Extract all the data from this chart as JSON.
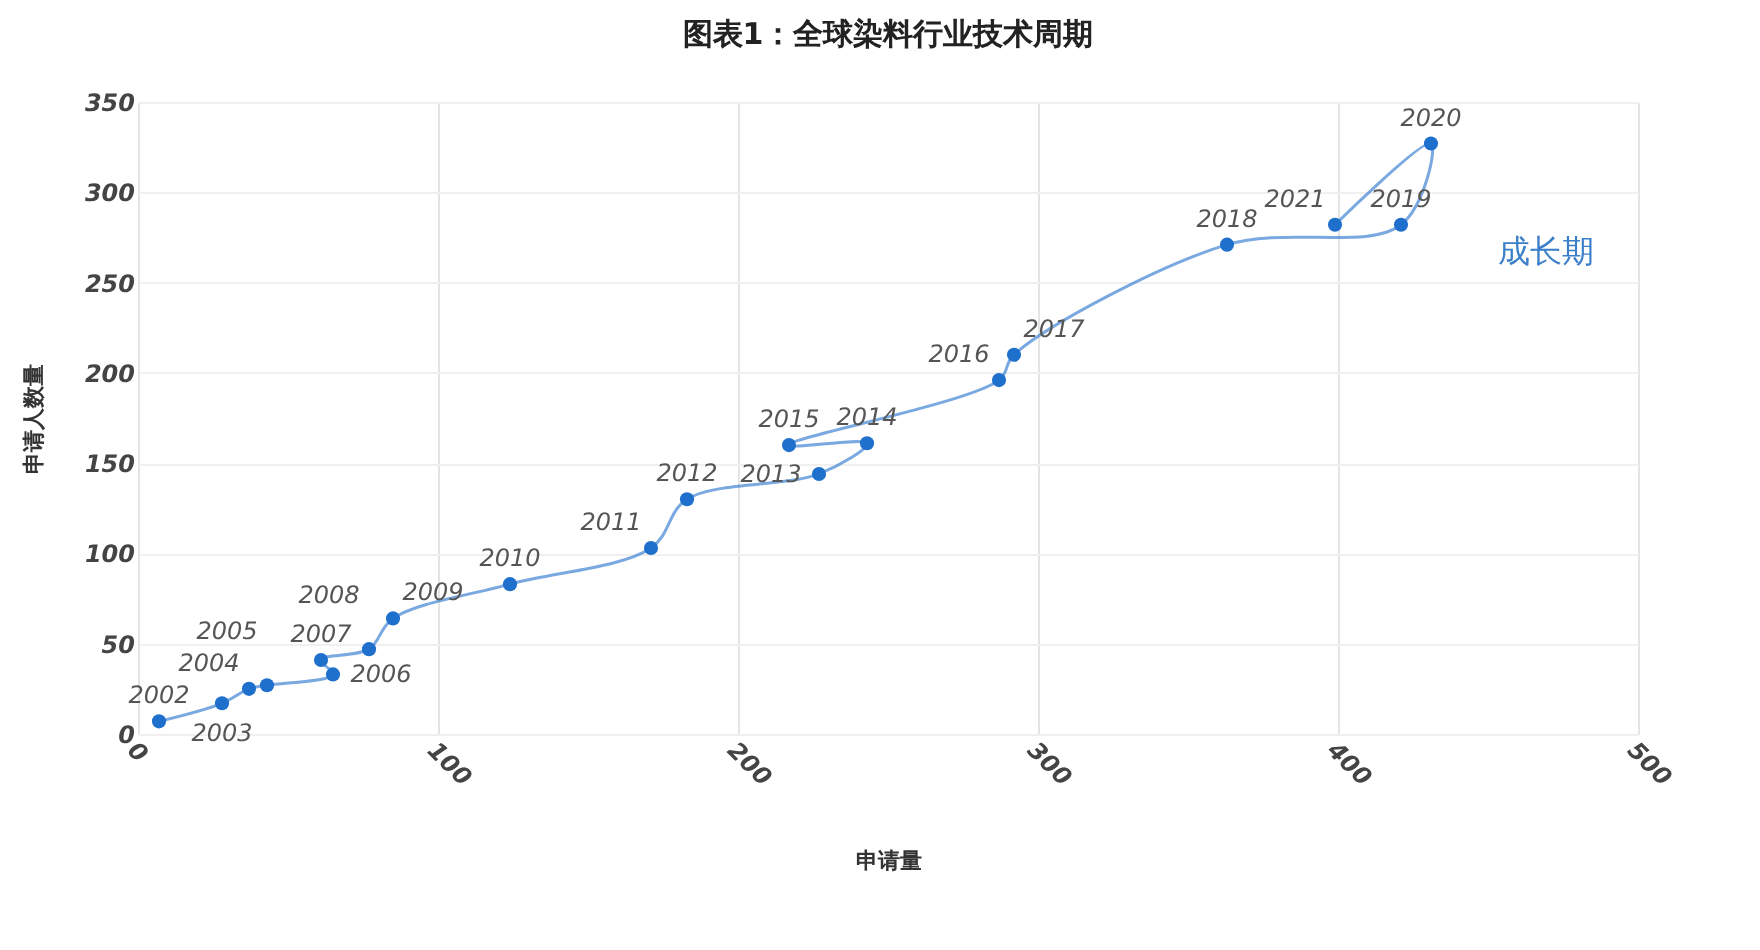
{
  "chart_data": {
    "type": "line",
    "title": "图表1：全球染料行业技术周期",
    "xlabel": "申请量",
    "ylabel": "申请人数量",
    "annotations": [
      "成长期",
      {
        "text": "2002",
        "x": 7,
        "y": 7
      },
      {
        "text": "2003",
        "x": 28,
        "y": 17
      },
      {
        "text": "2004",
        "x": 37,
        "y": 25
      },
      {
        "text": "2005",
        "x": 43,
        "y": 27
      },
      {
        "text": "2006",
        "x": 65,
        "y": 33
      },
      {
        "text": "2007",
        "x": 61,
        "y": 41
      },
      {
        "text": "2008",
        "x": 77,
        "y": 47
      },
      {
        "text": "2009",
        "x": 85,
        "y": 64
      },
      {
        "text": "2010",
        "x": 124,
        "y": 83
      },
      {
        "text": "2011",
        "x": 171,
        "y": 103
      },
      {
        "text": "2012",
        "x": 183,
        "y": 130
      },
      {
        "text": "2013",
        "x": 227,
        "y": 144
      },
      {
        "text": "2014",
        "x": 243,
        "y": 161
      },
      {
        "text": "2015",
        "x": 217,
        "y": 160
      },
      {
        "text": "2016",
        "x": 287,
        "y": 196
      },
      {
        "text": "2017",
        "x": 292,
        "y": 210
      },
      {
        "text": "2018",
        "x": 363,
        "y": 271
      },
      {
        "text": "2019",
        "x": 421,
        "y": 282
      },
      {
        "text": "2020",
        "x": 431,
        "y": 327
      },
      {
        "text": "2021",
        "x": 399,
        "y": 282
      }
    ],
    "x": [
      7,
      28,
      37,
      43,
      65,
      61,
      77,
      85,
      124,
      171,
      183,
      227,
      243,
      217,
      287,
      292,
      363,
      421,
      431,
      399
    ],
    "series": [
      {
        "color": "#1f6fcc",
        "values": [
          7,
          17,
          25,
          27,
          33,
          41,
          47,
          64,
          83,
          103,
          130,
          144,
          161,
          160,
          196,
          210,
          271,
          282,
          327,
          282
        ]
      }
    ],
    "xlim": [
      0,
      500
    ],
    "xticks": [
      0,
      100,
      200,
      300,
      400,
      500
    ],
    "ylim": [
      0,
      350
    ],
    "yticks": [
      0,
      50,
      100,
      150,
      200,
      250,
      300,
      350
    ],
    "grid": true,
    "marker": "circle",
    "line_style": "solid"
  }
}
